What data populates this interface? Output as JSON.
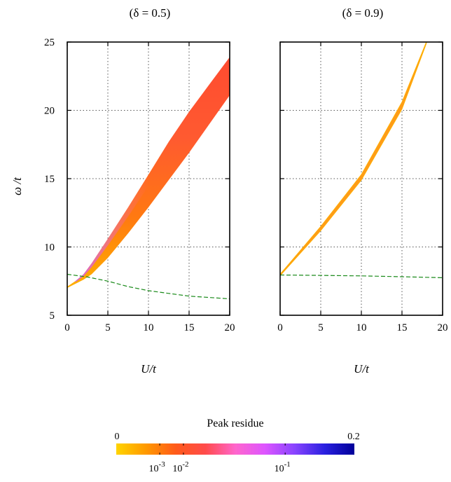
{
  "chart_data": [
    {
      "type": "line",
      "title": "(δ = 0.5)",
      "xlabel": "U/t",
      "ylabel": "ω /t",
      "xlim": [
        0,
        20
      ],
      "ylim": [
        5,
        25
      ],
      "xticks": [
        "0",
        "5",
        "10",
        "15",
        "20"
      ],
      "yticks": [
        "5",
        "10",
        "15",
        "20",
        "25"
      ],
      "grid": true,
      "band": {
        "name": "Peak residue",
        "x": [
          0,
          1,
          2,
          3,
          5,
          7.5,
          10,
          12.5,
          15,
          17.5,
          20
        ],
        "lower": [
          7.0,
          7.3,
          7.6,
          8.0,
          9.2,
          11.0,
          12.9,
          14.9,
          16.9,
          19.0,
          21.1
        ],
        "upper": [
          7.1,
          7.5,
          8.0,
          8.8,
          10.6,
          12.9,
          15.3,
          17.7,
          19.9,
          21.9,
          23.9
        ]
      },
      "series": [
        {
          "x": [
            0,
            2.5,
            5,
            7.5,
            10,
            12.5,
            15,
            17.5,
            20
          ],
          "values": [
            8.0,
            7.8,
            7.5,
            7.1,
            6.8,
            6.6,
            6.4,
            6.3,
            6.2
          ],
          "style": "dashed",
          "color": "#1a8a1a"
        }
      ]
    },
    {
      "type": "line",
      "title": "(δ = 0.9)",
      "xlabel": "U/t",
      "xlim": [
        0,
        20
      ],
      "ylim": [
        5,
        25
      ],
      "xticks": [
        "0",
        "5",
        "10",
        "15",
        "20"
      ],
      "grid": true,
      "band": {
        "name": "Peak residue",
        "x": [
          0,
          5,
          10,
          15,
          18
        ],
        "lower": [
          7.9,
          11.2,
          14.9,
          20.1,
          24.9
        ],
        "upper": [
          8.0,
          11.5,
          15.3,
          20.6,
          25.0
        ]
      },
      "series": [
        {
          "x": [
            0,
            5,
            10,
            15,
            20
          ],
          "values": [
            7.95,
            7.92,
            7.88,
            7.82,
            7.75
          ],
          "style": "dashed",
          "color": "#1a8a1a"
        }
      ]
    }
  ],
  "colorbar": {
    "title": "Peak residue",
    "min_label": "0",
    "max_label": "0.2",
    "log_ticks": [
      {
        "base": "10",
        "exp": "-3",
        "value": 0.001
      },
      {
        "base": "10",
        "exp": "-2",
        "value": 0.01
      },
      {
        "base": "10",
        "exp": "-1",
        "value": 0.1
      }
    ],
    "colors": [
      "#ffd400",
      "#ff9900",
      "#ff5a1a",
      "#ff4b4b",
      "#ff66cc",
      "#dd55ff",
      "#8844ff",
      "#2a20e0",
      "#000099"
    ]
  }
}
